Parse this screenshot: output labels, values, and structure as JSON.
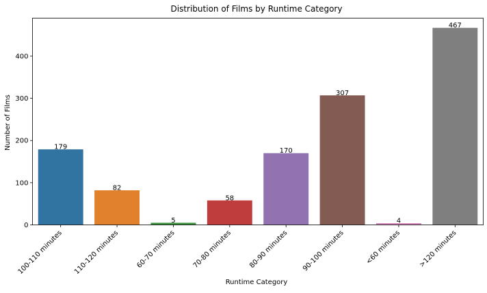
{
  "chart_data": {
    "type": "bar",
    "title": "Distribution of Films by Runtime Category",
    "xlabel": "Runtime Category",
    "ylabel": "Number of Films",
    "categories": [
      "100-110 minutes",
      "110-120 minutes",
      "60-70 minutes",
      "70-80 minutes",
      "80-90 minutes",
      "90-100 minutes",
      "<60 minutes",
      ">120 minutes"
    ],
    "values": [
      179,
      82,
      5,
      58,
      170,
      307,
      4,
      467
    ],
    "colors": [
      "#3274a1",
      "#e1812c",
      "#3a923a",
      "#c03d3e",
      "#9372b2",
      "#845b53",
      "#d684bd",
      "#7f7f7f"
    ],
    "ylim": [
      0,
      490
    ],
    "yticks": [
      0,
      100,
      200,
      300,
      400
    ],
    "grid": false,
    "legend": "none"
  }
}
